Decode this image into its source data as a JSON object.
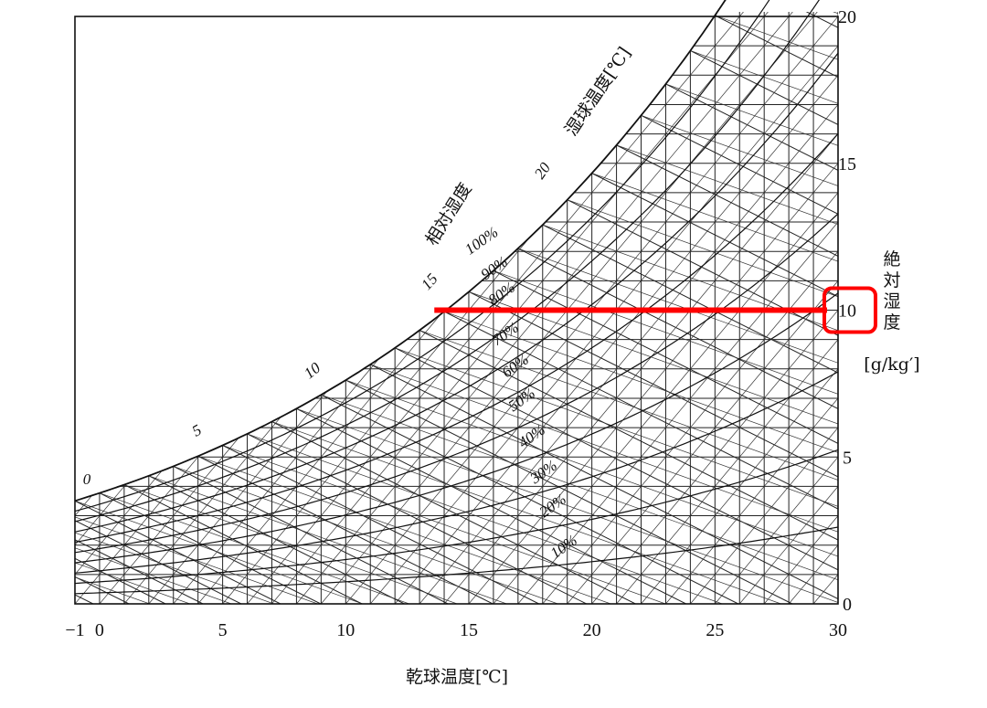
{
  "chart_data": {
    "type": "psychrometric",
    "xlabel": "乾球温度[℃]",
    "ylabel_chars": [
      "絶",
      "対",
      "湿",
      "度"
    ],
    "ylabel_unit": "[g/kg′]",
    "rh_title": "相対湿度",
    "wb_title": "湿球温度[℃]",
    "xlim": [
      -1,
      30
    ],
    "ylim": [
      0,
      20
    ],
    "x_ticks": [
      {
        "value": -1,
        "label": "−1"
      },
      {
        "value": 0,
        "label": "0"
      },
      {
        "value": 5,
        "label": "5"
      },
      {
        "value": 10,
        "label": "10"
      },
      {
        "value": 15,
        "label": "15"
      },
      {
        "value": 20,
        "label": "20"
      },
      {
        "value": 25,
        "label": "25"
      },
      {
        "value": 30,
        "label": "30"
      }
    ],
    "y_ticks": [
      {
        "value": 0,
        "label": "0"
      },
      {
        "value": 5,
        "label": "5"
      },
      {
        "value": 10,
        "label": "10"
      },
      {
        "value": 15,
        "label": "15"
      },
      {
        "value": 20,
        "label": "20"
      }
    ],
    "rh_curves": [
      {
        "rh": 100,
        "label": "100%"
      },
      {
        "rh": 90,
        "label": "90%"
      },
      {
        "rh": 80,
        "label": "80%"
      },
      {
        "rh": 70,
        "label": "70%"
      },
      {
        "rh": 60,
        "label": "60%"
      },
      {
        "rh": 50,
        "label": "50%"
      },
      {
        "rh": 40,
        "label": "40%"
      },
      {
        "rh": 30,
        "label": "30%"
      },
      {
        "rh": 20,
        "label": "20%"
      },
      {
        "rh": 10,
        "label": "10%"
      }
    ],
    "wb_labels": [
      {
        "t": 0,
        "label": "0"
      },
      {
        "t": 5,
        "label": "5"
      },
      {
        "t": 10,
        "label": "10"
      },
      {
        "t": 15,
        "label": "15"
      },
      {
        "t": 20,
        "label": "20"
      }
    ],
    "wb_line_step": 1,
    "dry_bulb_line_step": 1,
    "humidity_line_step": 0.5,
    "grid": true,
    "annotation": {
      "type": "horizontal-line",
      "color": "#ff0000",
      "y": 10,
      "x_start": 13.6,
      "x_end": 30,
      "highlighted_tick": "10"
    }
  }
}
